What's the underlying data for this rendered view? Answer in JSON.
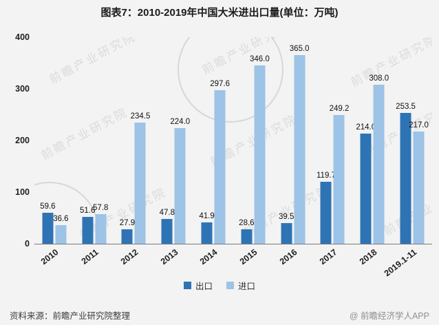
{
  "title": "图表7：2010-2019年中国大米进出口量(单位：万吨)",
  "watermark_text": "前瞻产业研究院",
  "footer": {
    "source": "资料来源：前瞻产业研究院整理",
    "credit": "@ 前瞻经济学人APP"
  },
  "chart_data": {
    "type": "bar",
    "title": "图表7：2010-2019年中国大米进出口量(单位：万吨)",
    "categories": [
      "2010",
      "2011",
      "2012",
      "2013",
      "2014",
      "2015",
      "2016",
      "2017",
      "2018",
      "2019.1-11"
    ],
    "series": [
      {
        "name": "出口",
        "color": "#2e74b5",
        "values": [
          59.6,
          51.6,
          27.9,
          47.8,
          41.9,
          28.6,
          39.5,
          119.7,
          214.0,
          253.5
        ],
        "labels": [
          "59.6",
          "51.6",
          "27.9",
          "47.8",
          "41.9",
          "28.6",
          "39.5",
          "119.7",
          "214.0",
          "253.5"
        ]
      },
      {
        "name": "进口",
        "color": "#9dc3e6",
        "values": [
          36.6,
          57.8,
          234.5,
          224.0,
          297.6,
          346.0,
          365.0,
          249.2,
          308.0,
          217.0
        ],
        "labels": [
          "36.6",
          "57.8",
          "234.5",
          "224.0",
          "297.6",
          "346.0",
          "365.0",
          "249.2",
          "308.0",
          "217.0"
        ]
      }
    ],
    "ylim": [
      0,
      400
    ],
    "yticks": [
      0,
      100,
      200,
      300,
      400
    ],
    "ylabel": "",
    "xlabel": "",
    "grid": false,
    "legend_position": "bottom"
  }
}
